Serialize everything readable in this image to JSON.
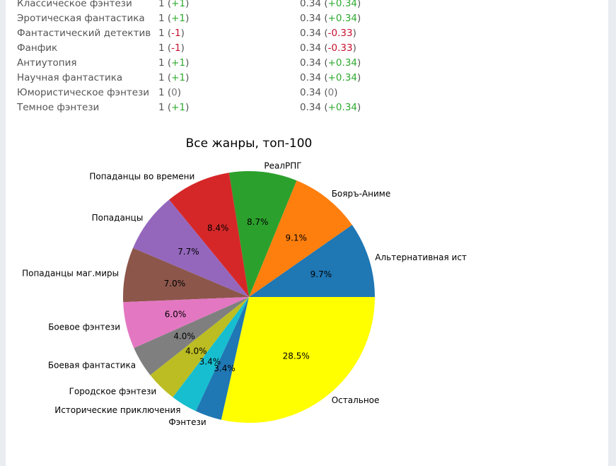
{
  "table": {
    "rows": [
      {
        "genre": "Классическое фэнтези",
        "count": "1",
        "count_delta": "+1",
        "share": "0.34",
        "share_delta": "+0.34",
        "sign": "pos"
      },
      {
        "genre": "Эротическая фантастика",
        "count": "1",
        "count_delta": "+1",
        "share": "0.34",
        "share_delta": "+0.34",
        "sign": "pos"
      },
      {
        "genre": "Фантастический детектив",
        "count": "1",
        "count_delta": "-1",
        "share": "0.34",
        "share_delta": "-0.33",
        "sign": "neg"
      },
      {
        "genre": "Фанфик",
        "count": "1",
        "count_delta": "-1",
        "share": "0.34",
        "share_delta": "-0.33",
        "sign": "neg"
      },
      {
        "genre": "Антиутопия",
        "count": "1",
        "count_delta": "+1",
        "share": "0.34",
        "share_delta": "+0.34",
        "sign": "pos"
      },
      {
        "genre": "Научная фантастика",
        "count": "1",
        "count_delta": "+1",
        "share": "0.34",
        "share_delta": "+0.34",
        "sign": "pos"
      },
      {
        "genre": "Юмористическое фэнтези",
        "count": "1",
        "count_delta": "0",
        "share": "0.34",
        "share_delta": "0",
        "sign": "neu"
      },
      {
        "genre": "Темное фэнтези",
        "count": "1",
        "count_delta": "+1",
        "share": "0.34",
        "share_delta": "+0.34",
        "sign": "pos"
      }
    ]
  },
  "colors": {
    "positive": "#2ea92e",
    "negative": "#c8102e",
    "neutral": "#777777"
  },
  "chart_data": {
    "type": "pie",
    "title": "Все жанры, топ-100",
    "start_angle_deg": 0,
    "direction": "counterclockwise",
    "slices": [
      {
        "label": "Альтернативная ист",
        "value": 9.7,
        "pct_label": "9.7%",
        "color": "#1f77b4"
      },
      {
        "label": "Бояръ-Аниме",
        "value": 9.1,
        "pct_label": "9.1%",
        "color": "#ff7f0e"
      },
      {
        "label": "РеалРПГ",
        "value": 8.7,
        "pct_label": "8.7%",
        "color": "#2ca02c"
      },
      {
        "label": "Попаданцы во времени",
        "value": 8.4,
        "pct_label": "8.4%",
        "color": "#d62728"
      },
      {
        "label": "Попаданцы",
        "value": 7.7,
        "pct_label": "7.7%",
        "color": "#9467bd"
      },
      {
        "label": "Попаданцы маг.миры",
        "value": 7.0,
        "pct_label": "7.0%",
        "color": "#8c564b"
      },
      {
        "label": "Боевое фэнтези",
        "value": 6.0,
        "pct_label": "6.0%",
        "color": "#e377c2"
      },
      {
        "label": "Боевая фантастика",
        "value": 4.0,
        "pct_label": "4.0%",
        "color": "#7f7f7f"
      },
      {
        "label": "Городское фэнтези",
        "value": 4.0,
        "pct_label": "4.0%",
        "color": "#bcbd22"
      },
      {
        "label": "Исторические приключения",
        "value": 3.4,
        "pct_label": "3.4%",
        "color": "#17becf"
      },
      {
        "label": "Фэнтези",
        "value": 3.4,
        "pct_label": "3.4%",
        "color": "#1f77b4"
      },
      {
        "label": "Остальное",
        "value": 28.5,
        "pct_label": "28.5%",
        "color": "#ffff00"
      }
    ]
  }
}
